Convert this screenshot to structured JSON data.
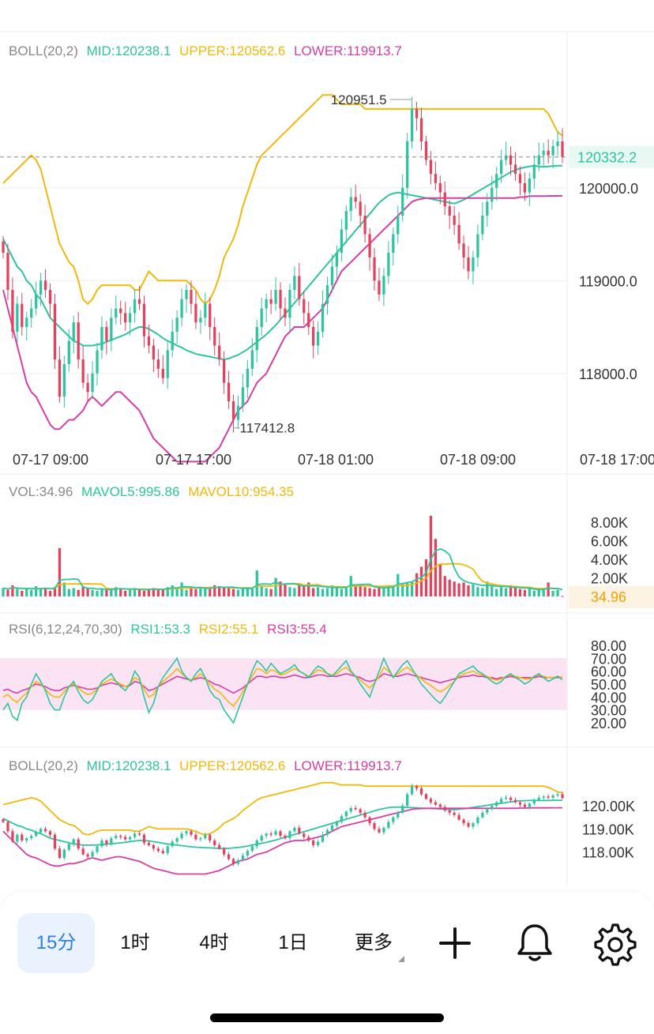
{
  "chart_data": [
    {
      "type": "candlestick",
      "title": "BOLL(20,2)",
      "legend": [
        {
          "label": "MID:120238.1",
          "color": "#2ec4a0"
        },
        {
          "label": "UPPER:120562.6",
          "color": "#f0b90b"
        },
        {
          "label": "LOWER:119913.7",
          "color": "#d63ea6"
        }
      ],
      "x_ticks": [
        "07-17 09:00",
        "07-17 17:00",
        "07-18 01:00",
        "07-18 09:00",
        "07-18 17:00"
      ],
      "y_ticks": [
        "120000.0",
        "119000.0",
        "118000.0"
      ],
      "y_tick_values": [
        120000,
        119000,
        118000
      ],
      "ylim": [
        117300,
        121300
      ],
      "current_price_label": "120332.2",
      "current_price": 120332.2,
      "high_label": "120951.5",
      "high": 120951.5,
      "low_label": "117412.8",
      "low": 117412.8,
      "close": [
        119300,
        118900,
        118450,
        118750,
        118500,
        118600,
        118700,
        118850,
        119000,
        118900,
        118750,
        118150,
        117750,
        118100,
        118350,
        118550,
        118150,
        117900,
        117800,
        118000,
        118250,
        118500,
        118350,
        118600,
        118700,
        118650,
        118550,
        118650,
        118800,
        118750,
        118400,
        118300,
        118150,
        118050,
        117950,
        118250,
        118450,
        118600,
        118800,
        118900,
        118750,
        118550,
        118600,
        118750,
        118500,
        118300,
        118150,
        117900,
        117700,
        117500,
        117650,
        117850,
        118050,
        118250,
        118500,
        118700,
        118800,
        118750,
        118900,
        118700,
        118600,
        118900,
        119050,
        118800,
        118650,
        118500,
        118300,
        118450,
        118750,
        118950,
        119150,
        119300,
        119550,
        119750,
        119900,
        119850,
        119700,
        119500,
        119250,
        119000,
        118850,
        119050,
        119300,
        119500,
        119700,
        120000,
        120500,
        120850,
        120750,
        120500,
        120300,
        120150,
        120050,
        119950,
        119800,
        119700,
        119600,
        119400,
        119250,
        119100,
        119250,
        119500,
        119700,
        119850,
        120000,
        120150,
        120300,
        120350,
        120250,
        120150,
        120050,
        119950,
        120100,
        120250,
        120350,
        120400,
        120350,
        120450,
        120500,
        120332.2
      ],
      "mid_band": [
        119450,
        119350,
        119250,
        119150,
        119100,
        119000,
        118950,
        118850,
        118800,
        118700,
        118600,
        118550,
        118500,
        118450,
        118400,
        118350,
        118330,
        118300,
        118300,
        118300,
        118310,
        118320,
        118340,
        118360,
        118380,
        118400,
        118420,
        118450,
        118480,
        118500,
        118500,
        118480,
        118450,
        118420,
        118380,
        118350,
        118330,
        118300,
        118280,
        118250,
        118230,
        118210,
        118200,
        118190,
        118180,
        118170,
        118160,
        118150,
        118160,
        118180,
        118200,
        118230,
        118260,
        118300,
        118340,
        118380,
        118420,
        118470,
        118520,
        118580,
        118640,
        118700,
        118760,
        118820,
        118880,
        118940,
        119000,
        119060,
        119120,
        119180,
        119240,
        119300,
        119360,
        119420,
        119480,
        119540,
        119600,
        119660,
        119720,
        119780,
        119840,
        119880,
        119920,
        119940,
        119950,
        119940,
        119930,
        119920,
        119910,
        119900,
        119890,
        119880,
        119870,
        119860,
        119850,
        119840,
        119830,
        119850,
        119870,
        119900,
        119930,
        119960,
        119990,
        120020,
        120050,
        120080,
        120110,
        120140,
        120170,
        120190,
        120210,
        120220,
        120230,
        120240,
        120230,
        120225,
        120230,
        120235,
        120238,
        120238.1
      ],
      "upper_band": [
        120050,
        120100,
        120150,
        120200,
        120250,
        120300,
        120350,
        120300,
        120200,
        120000,
        119800,
        119600,
        119400,
        119300,
        119200,
        119150,
        119000,
        118800,
        118750,
        118800,
        118900,
        118950,
        118950,
        118950,
        118950,
        118950,
        118950,
        118950,
        118900,
        118900,
        119000,
        119100,
        119050,
        119000,
        119000,
        119000,
        119000,
        119000,
        119000,
        119000,
        118950,
        118900,
        118800,
        118750,
        118800,
        118900,
        119050,
        119250,
        119350,
        119450,
        119600,
        119800,
        119950,
        120100,
        120250,
        120350,
        120400,
        120450,
        120500,
        120550,
        120600,
        120650,
        120700,
        120750,
        120800,
        120850,
        120900,
        120950,
        121000,
        121000,
        121000,
        120950,
        120900,
        120900,
        120900,
        120900,
        120900,
        120850,
        120850,
        120850,
        120850,
        120850,
        120850,
        120850,
        120850,
        120850,
        120850,
        120850,
        120850,
        120850,
        120850,
        120850,
        120850,
        120850,
        120850,
        120850,
        120850,
        120850,
        120850,
        120850,
        120850,
        120850,
        120850,
        120850,
        120850,
        120850,
        120850,
        120850,
        120850,
        120850,
        120850,
        120850,
        120850,
        120850,
        120850,
        120850,
        120800,
        120700,
        120600,
        120562.6
      ],
      "lower_band": [
        118900,
        118700,
        118500,
        118300,
        118100,
        117900,
        117800,
        117750,
        117650,
        117550,
        117450,
        117400,
        117400,
        117450,
        117500,
        117500,
        117550,
        117600,
        117700,
        117750,
        117700,
        117650,
        117700,
        117750,
        117800,
        117800,
        117750,
        117700,
        117650,
        117600,
        117500,
        117400,
        117300,
        117250,
        117200,
        117150,
        117100,
        117050,
        117050,
        117050,
        117050,
        117050,
        117050,
        117050,
        117100,
        117150,
        117200,
        117300,
        117400,
        117500,
        117600,
        117650,
        117700,
        117800,
        117900,
        117950,
        118000,
        118100,
        118200,
        118300,
        118400,
        118450,
        118500,
        118500,
        118500,
        118550,
        118600,
        118650,
        118700,
        118800,
        118900,
        119000,
        119100,
        119150,
        119200,
        119250,
        119300,
        119350,
        119400,
        119450,
        119500,
        119550,
        119600,
        119650,
        119700,
        119750,
        119800,
        119850,
        119870,
        119880,
        119890,
        119890,
        119890,
        119890,
        119890,
        119890,
        119890,
        119890,
        119890,
        119890,
        119890,
        119890,
        119890,
        119890,
        119890,
        119890,
        119890,
        119890,
        119890,
        119890,
        119900,
        119900,
        119910,
        119910,
        119910,
        119910,
        119912,
        119913,
        119913,
        119913.7
      ]
    },
    {
      "type": "bar",
      "title": "VOL:34.96",
      "legend": [
        {
          "label": "MAVOL5:995.86",
          "color": "#2ec4a0"
        },
        {
          "label": "MAVOL10:954.35",
          "color": "#f0b90b"
        }
      ],
      "y_ticks": [
        "8.00K",
        "6.00K",
        "4.00K",
        "2.00K"
      ],
      "y_tick_values": [
        8000,
        6000,
        4000,
        2000
      ],
      "ylim": [
        0,
        9800
      ],
      "current_label": "34.96",
      "current": 34.96,
      "values": [
        900,
        700,
        1200,
        800,
        600,
        900,
        700,
        1100,
        800,
        900,
        600,
        1000,
        5200,
        1500,
        800,
        900,
        700,
        1100,
        900,
        700,
        600,
        800,
        700,
        900,
        1000,
        800,
        600,
        700,
        900,
        800,
        600,
        700,
        900,
        800,
        700,
        1000,
        1200,
        800,
        1500,
        700,
        900,
        800,
        1000,
        900,
        800,
        1200,
        1100,
        900,
        1000,
        800,
        700,
        900,
        1000,
        800,
        2800,
        1200,
        900,
        800,
        2000,
        1600,
        1400,
        1000,
        900,
        1200,
        1100,
        1500,
        900,
        1000,
        800,
        900,
        1200,
        1000,
        800,
        900,
        2200,
        1300,
        1100,
        1000,
        900,
        800,
        1000,
        900,
        1200,
        1100,
        2400,
        1300,
        1500,
        1600,
        2500,
        3200,
        4000,
        8700,
        6200,
        3500,
        2200,
        1800,
        1600,
        1400,
        1500,
        1200,
        1300,
        1000,
        900,
        1600,
        1100,
        800,
        1000,
        900,
        1200,
        900,
        800,
        700,
        900,
        600,
        700,
        800,
        1500,
        600,
        700,
        34.96
      ]
    },
    {
      "type": "line",
      "title": "RSI(6,12,24,70,30)",
      "legend": [
        {
          "label": "RSI1:53.3",
          "color": "#2ec4a0"
        },
        {
          "label": "RSI2:55.1",
          "color": "#f0b90b"
        },
        {
          "label": "RSI3:55.4",
          "color": "#d63ea6"
        }
      ],
      "y_ticks": [
        "80.00",
        "70.00",
        "60.00",
        "50.00",
        "40.00",
        "30.00",
        "20.00"
      ],
      "y_tick_values": [
        80,
        70,
        60,
        50,
        40,
        30,
        20
      ],
      "ylim": [
        17,
        83
      ],
      "band": [
        30,
        70
      ],
      "series": [
        {
          "values": [
            30,
            35,
            25,
            22,
            35,
            40,
            50,
            58,
            52,
            45,
            35,
            30,
            30,
            40,
            48,
            52,
            44,
            38,
            35,
            38,
            45,
            52,
            55,
            58,
            52,
            48,
            45,
            50,
            60,
            55,
            40,
            28,
            35,
            48,
            55,
            60,
            65,
            70,
            60,
            55,
            52,
            58,
            62,
            55,
            45,
            40,
            38,
            30,
            25,
            20,
            30,
            40,
            50,
            60,
            68,
            65,
            60,
            66,
            62,
            58,
            60,
            62,
            65,
            60,
            58,
            55,
            60,
            64,
            62,
            58,
            56,
            60,
            64,
            68,
            60,
            56,
            50,
            45,
            40,
            50,
            60,
            70,
            62,
            55,
            60,
            65,
            68,
            62,
            56,
            50,
            46,
            42,
            38,
            35,
            40,
            46,
            52,
            58,
            60,
            62,
            64,
            60,
            58,
            55,
            52,
            50,
            52,
            56,
            58,
            55,
            53,
            50,
            52,
            56,
            58,
            55,
            52,
            54,
            56,
            53.3
          ]
        },
        {
          "values": [
            40,
            42,
            38,
            36,
            40,
            43,
            48,
            52,
            50,
            46,
            42,
            40,
            40,
            44,
            48,
            50,
            47,
            44,
            42,
            43,
            46,
            50,
            52,
            54,
            52,
            50,
            48,
            50,
            55,
            53,
            46,
            40,
            42,
            48,
            52,
            55,
            58,
            62,
            58,
            55,
            53,
            55,
            58,
            55,
            50,
            46,
            44,
            40,
            36,
            33,
            38,
            44,
            50,
            56,
            62,
            61,
            58,
            61,
            60,
            57,
            58,
            60,
            62,
            60,
            58,
            56,
            58,
            61,
            60,
            58,
            57,
            58,
            61,
            63,
            59,
            56,
            53,
            50,
            47,
            51,
            56,
            63,
            60,
            56,
            58,
            61,
            63,
            60,
            57,
            54,
            51,
            49,
            46,
            44,
            46,
            49,
            52,
            56,
            58,
            59,
            60,
            58,
            57,
            56,
            54,
            53,
            54,
            56,
            57,
            56,
            55,
            54,
            54,
            56,
            57,
            56,
            55,
            55,
            56,
            55.1
          ]
        },
        {
          "values": [
            45,
            46,
            44,
            43,
            45,
            46,
            48,
            50,
            49,
            48,
            46,
            45,
            45,
            47,
            48,
            49,
            48,
            47,
            46,
            46,
            47,
            49,
            50,
            51,
            50,
            49,
            48,
            49,
            52,
            51,
            48,
            45,
            46,
            48,
            50,
            52,
            54,
            56,
            55,
            54,
            53,
            54,
            55,
            54,
            52,
            50,
            49,
            47,
            45,
            43,
            45,
            47,
            50,
            53,
            56,
            56,
            55,
            56,
            56,
            55,
            55,
            56,
            57,
            56,
            55,
            55,
            56,
            57,
            57,
            56,
            56,
            56,
            57,
            58,
            57,
            56,
            55,
            53,
            52,
            53,
            55,
            58,
            57,
            56,
            56,
            57,
            58,
            57,
            56,
            55,
            54,
            53,
            52,
            51,
            52,
            53,
            54,
            55,
            56,
            56,
            57,
            56,
            56,
            55,
            55,
            54,
            55,
            55,
            56,
            55,
            55,
            55,
            55,
            55,
            56,
            55,
            55,
            55,
            55,
            55.4
          ]
        }
      ]
    },
    {
      "type": "candlestick",
      "title": "BOLL(20,2)",
      "legend": [
        {
          "label": "MID:120238.1",
          "color": "#2ec4a0"
        },
        {
          "label": "UPPER:120562.6",
          "color": "#f0b90b"
        },
        {
          "label": "LOWER:119913.7",
          "color": "#d63ea6"
        }
      ],
      "y_ticks": [
        "120.00K",
        "119.00K",
        "118.00K"
      ],
      "y_tick_values": [
        120000,
        119000,
        118000
      ],
      "ylim": [
        117000,
        121300
      ]
    }
  ],
  "colors": {
    "up": "#2ec4a0",
    "down": "#e0435e",
    "grid": "#eeeeee",
    "axis_text": "#333333",
    "rsi_band": "#fbe3f4"
  },
  "toolbar": {
    "tabs": [
      "15分",
      "1时",
      "4时",
      "1日",
      "更多"
    ],
    "icons": [
      "plus-icon",
      "bell-icon",
      "gear-icon"
    ]
  }
}
